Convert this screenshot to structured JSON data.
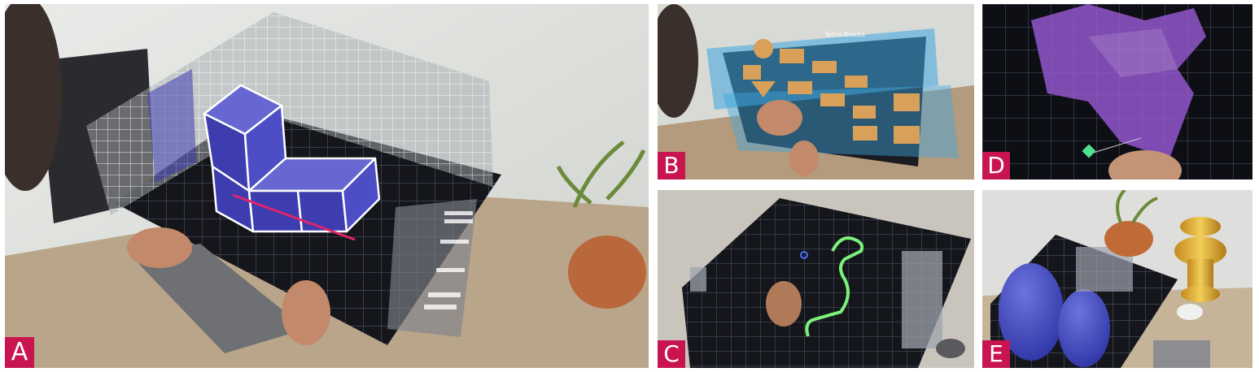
{
  "panels": {
    "a": {
      "label": "A"
    },
    "b": {
      "label": "B",
      "menu_title": "Tetris Blocks"
    },
    "c": {
      "label": "C"
    },
    "d": {
      "label": "D"
    },
    "e": {
      "label": "E"
    }
  },
  "colors": {
    "label_badge": "#c8154f",
    "block_fill": "#3d3db0",
    "grid_line": "#9fa6b8",
    "curve_green": "#7cf27c",
    "ghost_purple": "#9a5ad8",
    "wood_block": "#d9a05a",
    "vase_gold": "#e6b53a"
  }
}
